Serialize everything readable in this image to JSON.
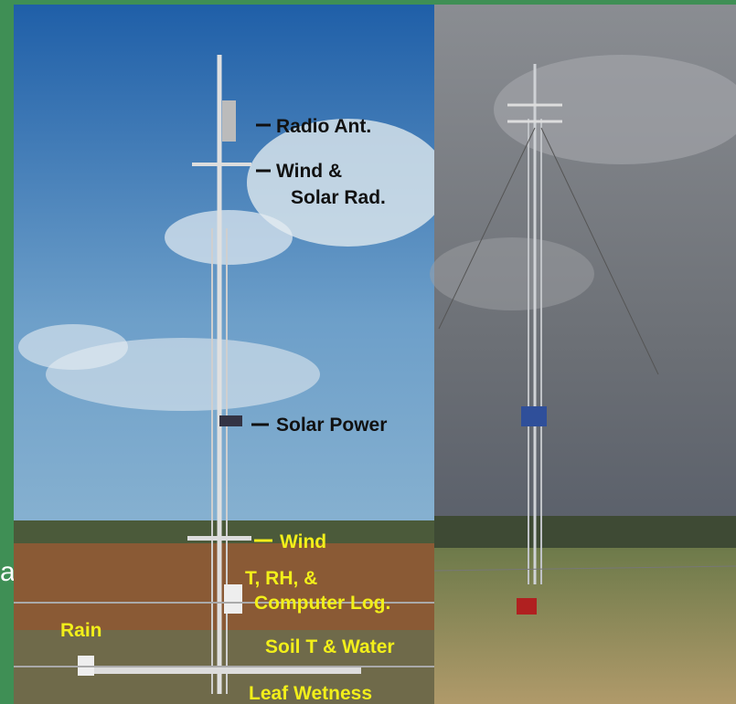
{
  "side_text": "al",
  "labels": {
    "radio_ant": "Radio Ant.",
    "wind_solar": [
      "Wind &",
      "Solar Rad."
    ],
    "solar_power": "Solar Power",
    "wind": "Wind",
    "t_rh": [
      "T, RH, &",
      "Computer Log."
    ],
    "rain": "Rain",
    "soil": "Soil T & Water",
    "leaf": "Leaf Wetness"
  }
}
